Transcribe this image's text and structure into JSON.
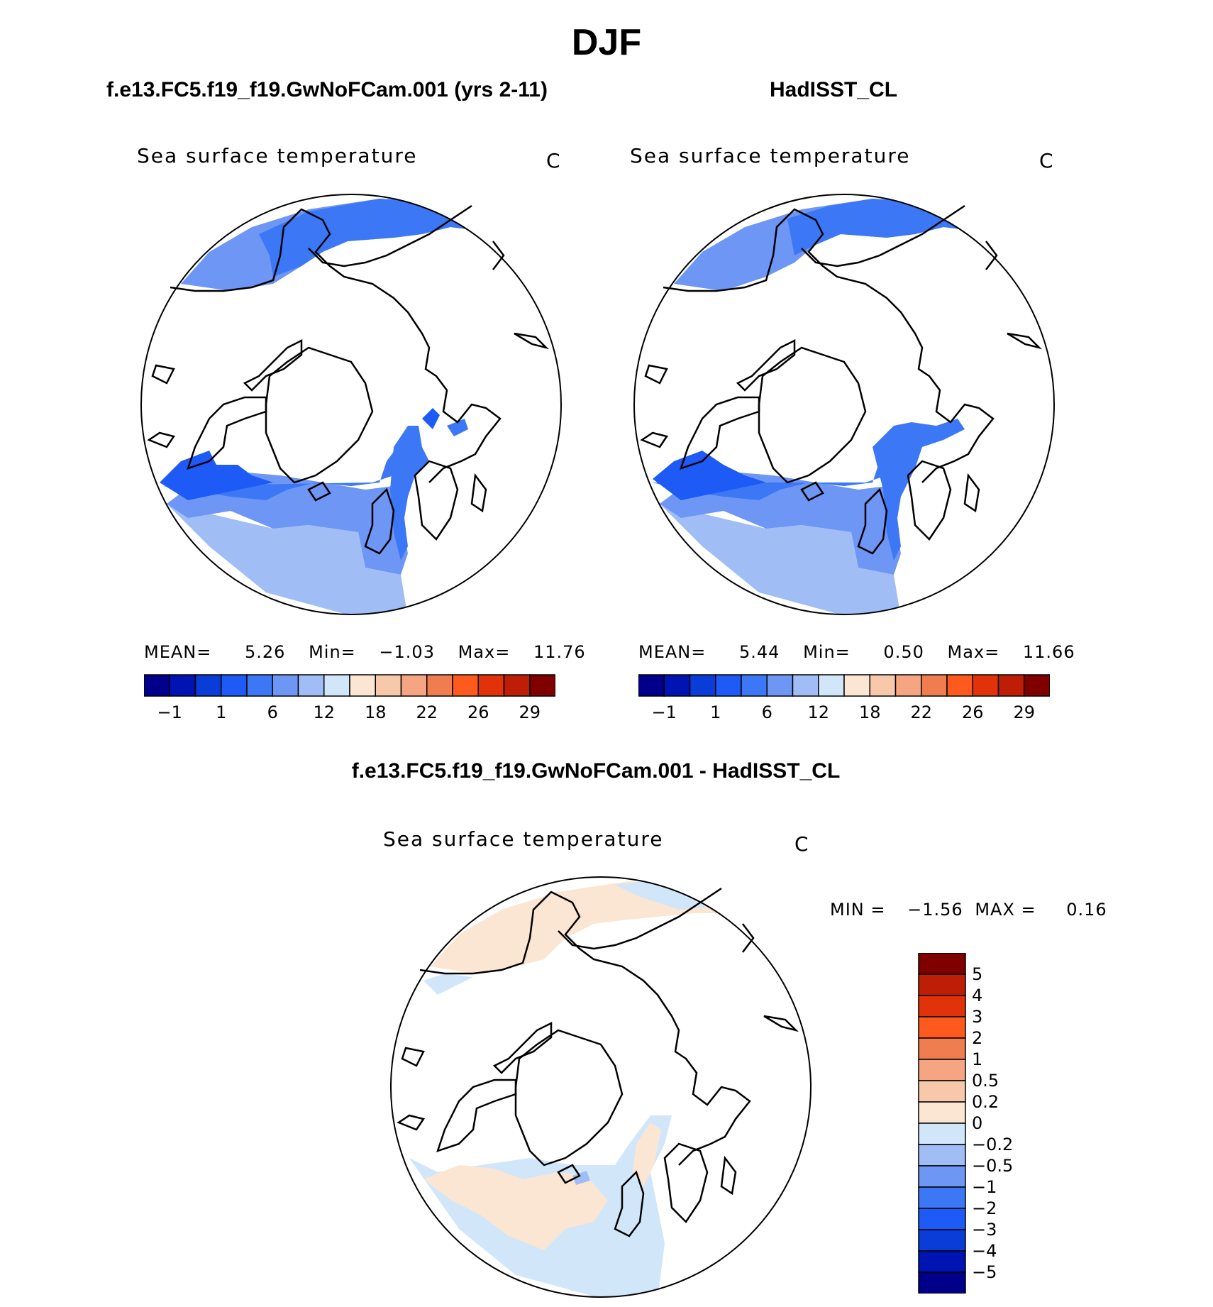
{
  "title": "DJF",
  "colors": {
    "land_stroke": "#000000",
    "abs_levels": [
      "#00008a",
      "#0014b4",
      "#0a3cd7",
      "#1e5af5",
      "#3c78f5",
      "#6e96f5",
      "#a0bef5",
      "#d2e6fa",
      "#fae6d2",
      "#f8c8aa",
      "#f5a582",
      "#f07d50",
      "#ff5a1e",
      "#e1320a",
      "#be1e05",
      "#800000"
    ],
    "diff_levels": [
      "#00008a",
      "#0014b4",
      "#0a3cd7",
      "#1e5af5",
      "#3c78f5",
      "#6e96f5",
      "#a0bef5",
      "#d2e6fa",
      "#fae6d2",
      "#f8c8aa",
      "#f5a582",
      "#f07d50",
      "#ff5a1e",
      "#e1320a",
      "#be1e05",
      "#800000"
    ]
  },
  "panels": {
    "left": {
      "heading": "f.e13.FC5.f19_f19.GwNoFCam.001 (yrs 2-11)",
      "subtitle": "Sea surface temperature",
      "units": "C",
      "stats": {
        "mean_label": "MEAN=",
        "mean": "5.26",
        "min_label": "Min=",
        "min": "−1.03",
        "max_label": "Max=",
        "max": "11.76"
      },
      "ticks": [
        "−1",
        "1",
        "6",
        "12",
        "18",
        "22",
        "26",
        "29"
      ]
    },
    "right": {
      "heading": "HadISST_CL",
      "subtitle": "Sea surface temperature",
      "units": "C",
      "stats": {
        "mean_label": "MEAN=",
        "mean": "5.44",
        "min_label": "Min=",
        "min": "0.50",
        "max_label": "Max=",
        "max": "11.66"
      },
      "ticks": [
        "−1",
        "1",
        "6",
        "12",
        "18",
        "22",
        "26",
        "29"
      ]
    },
    "diff": {
      "heading": "f.e13.FC5.f19_f19.GwNoFCam.001 - HadISST_CL",
      "subtitle": "Sea surface temperature",
      "units": "C",
      "stats": {
        "min_label": "MIN =",
        "min": "−1.56",
        "max_label": "MAX =",
        "max": "0.16"
      },
      "ticks": [
        "5",
        "4",
        "3",
        "2",
        "1",
        "0.5",
        "0.2",
        "0",
        "−0.2",
        "−0.5",
        "−1",
        "−2",
        "−3",
        "−4",
        "−5"
      ]
    }
  }
}
